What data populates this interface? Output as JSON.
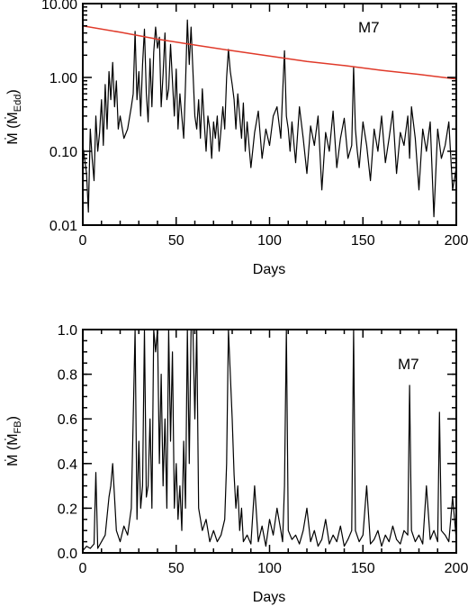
{
  "chart_data": [
    {
      "type": "line",
      "scale": "log",
      "annotation": "M7",
      "xlabel": "Days",
      "ylabel": "Ṁ  (Ṁ",
      "ylabel_sub": "Edd",
      "ylabel_close": ")",
      "xlim": [
        0,
        200
      ],
      "ylim": [
        0.01,
        10
      ],
      "xticks": [
        0,
        50,
        100,
        150,
        200
      ],
      "xtick_labels": [
        "0",
        "50",
        "100",
        "150",
        "200"
      ],
      "yticks": [
        0.01,
        0.1,
        1,
        10
      ],
      "ytick_labels": [
        "0.01",
        "0.10",
        "1.00",
        "10.00"
      ],
      "grid": false,
      "series": [
        {
          "color": "#000000",
          "x": [
            0,
            2,
            3,
            4,
            5,
            6,
            7,
            8,
            9,
            10,
            11,
            12,
            13,
            14,
            15,
            16,
            17,
            18,
            19,
            20,
            22,
            24,
            26,
            27,
            28,
            29,
            30,
            31,
            32,
            33,
            34,
            35,
            36,
            37,
            38,
            39,
            40,
            41,
            42,
            43,
            44,
            45,
            46,
            47,
            48,
            49,
            50,
            51,
            52,
            53,
            54,
            55,
            56,
            57,
            58,
            59,
            60,
            61,
            62,
            63,
            64,
            65,
            66,
            67,
            68,
            69,
            70,
            71,
            72,
            73,
            74,
            75,
            76,
            77,
            78,
            79,
            80,
            81,
            82,
            83,
            84,
            85,
            86,
            87,
            88,
            89,
            90,
            92,
            94,
            96,
            98,
            100,
            102,
            104,
            106,
            107,
            108,
            109,
            110,
            111,
            112,
            114,
            116,
            118,
            120,
            122,
            124,
            126,
            128,
            130,
            132,
            134,
            136,
            138,
            140,
            142,
            144,
            145,
            146,
            147,
            148,
            150,
            152,
            154,
            156,
            158,
            160,
            162,
            164,
            166,
            168,
            170,
            172,
            174,
            175,
            176,
            178,
            180,
            182,
            184,
            186,
            188,
            190,
            192,
            194,
            196,
            198,
            200
          ],
          "y": [
            0.12,
            0.05,
            0.015,
            0.2,
            0.08,
            0.04,
            0.3,
            0.1,
            0.18,
            0.5,
            0.12,
            0.8,
            0.2,
            1.2,
            0.5,
            1.6,
            0.4,
            0.9,
            0.2,
            0.3,
            0.15,
            0.2,
            0.4,
            0.6,
            4.2,
            0.5,
            1.2,
            0.3,
            1.5,
            4.5,
            0.6,
            0.25,
            1.8,
            0.4,
            2.2,
            4.8,
            2.5,
            3.5,
            0.4,
            1.1,
            4.0,
            0.5,
            0.7,
            2.8,
            0.9,
            0.3,
            1.3,
            0.2,
            0.6,
            0.3,
            0.15,
            0.8,
            6.0,
            1.5,
            4.8,
            1.2,
            0.3,
            0.2,
            0.5,
            0.15,
            0.7,
            0.25,
            0.1,
            0.3,
            0.2,
            0.08,
            0.25,
            0.15,
            0.3,
            0.1,
            0.2,
            0.4,
            0.2,
            1.0,
            2.4,
            1.2,
            0.8,
            0.5,
            0.2,
            0.6,
            0.3,
            0.15,
            0.45,
            0.1,
            0.25,
            0.12,
            0.06,
            0.18,
            0.35,
            0.08,
            0.2,
            0.12,
            0.3,
            0.4,
            0.15,
            0.6,
            2.3,
            0.3,
            0.2,
            0.1,
            0.25,
            0.07,
            0.4,
            0.15,
            0.05,
            0.22,
            0.12,
            0.3,
            0.03,
            0.18,
            0.1,
            0.35,
            0.06,
            0.15,
            0.28,
            0.08,
            0.12,
            1.4,
            0.2,
            0.1,
            0.06,
            0.25,
            0.12,
            0.04,
            0.2,
            0.1,
            0.3,
            0.07,
            0.15,
            0.35,
            0.05,
            0.18,
            0.12,
            0.3,
            0.08,
            0.4,
            0.15,
            0.03,
            0.2,
            0.1,
            0.25,
            0.013,
            0.2,
            0.08,
            0.12,
            0.25,
            0.03,
            0.06
          ]
        },
        {
          "color": "#e03a2a",
          "x": [
            0,
            20,
            40,
            60,
            80,
            100,
            120,
            140,
            160,
            180,
            200
          ],
          "y": [
            5.0,
            4.1,
            3.3,
            2.75,
            2.3,
            1.95,
            1.65,
            1.45,
            1.25,
            1.1,
            0.95
          ]
        }
      ]
    },
    {
      "type": "line",
      "scale": "linear",
      "annotation": "M7",
      "xlabel": "Days",
      "ylabel": "Ṁ  (Ṁ",
      "ylabel_sub": "FB",
      "ylabel_close": ")",
      "xlim": [
        0,
        200
      ],
      "ylim": [
        0,
        1
      ],
      "xticks": [
        0,
        50,
        100,
        150,
        200
      ],
      "xtick_labels": [
        "0",
        "50",
        "100",
        "150",
        "200"
      ],
      "yticks": [
        0,
        0.2,
        0.4,
        0.6,
        0.8,
        1.0
      ],
      "ytick_labels": [
        "0.0",
        "0.2",
        "0.4",
        "0.6",
        "0.8",
        "1.0"
      ],
      "grid": false,
      "series": [
        {
          "color": "#000000",
          "x": [
            0,
            2,
            4,
            6,
            7,
            8,
            10,
            12,
            14,
            15,
            16,
            18,
            20,
            22,
            24,
            26,
            27,
            28,
            29,
            30,
            31,
            32,
            33,
            34,
            35,
            36,
            37,
            38,
            39,
            40,
            41,
            42,
            43,
            44,
            45,
            46,
            47,
            48,
            49,
            50,
            51,
            52,
            53,
            54,
            55,
            56,
            57,
            58,
            59,
            60,
            61,
            62,
            64,
            66,
            68,
            70,
            72,
            74,
            76,
            77,
            78,
            79,
            80,
            81,
            82,
            83,
            84,
            85,
            86,
            88,
            90,
            92,
            94,
            96,
            98,
            100,
            102,
            104,
            106,
            107,
            108,
            109,
            110,
            112,
            114,
            116,
            118,
            120,
            122,
            124,
            126,
            128,
            130,
            132,
            134,
            136,
            138,
            140,
            142,
            144,
            145,
            146,
            148,
            150,
            152,
            154,
            156,
            158,
            160,
            162,
            164,
            166,
            168,
            170,
            172,
            174,
            175,
            176,
            178,
            180,
            182,
            184,
            186,
            188,
            190,
            191,
            192,
            194,
            196,
            198,
            200
          ],
          "y": [
            0.01,
            0.03,
            0.02,
            0.04,
            0.36,
            0.02,
            0.05,
            0.08,
            0.25,
            0.3,
            0.4,
            0.1,
            0.05,
            0.12,
            0.08,
            0.2,
            0.6,
            1.0,
            0.15,
            0.5,
            0.2,
            0.3,
            1.0,
            0.25,
            0.3,
            0.6,
            0.2,
            1.0,
            0.9,
            1.0,
            0.4,
            0.8,
            0.3,
            0.6,
            0.2,
            1.0,
            0.5,
            0.9,
            0.2,
            0.4,
            0.15,
            0.3,
            0.1,
            0.5,
            0.2,
            1.0,
            0.4,
            1.0,
            1.0,
            0.6,
            1.0,
            0.2,
            0.1,
            0.15,
            0.05,
            0.1,
            0.05,
            0.08,
            0.15,
            0.4,
            1.0,
            0.8,
            0.6,
            0.35,
            0.2,
            0.3,
            0.1,
            0.2,
            0.05,
            0.08,
            0.04,
            0.3,
            0.05,
            0.12,
            0.03,
            0.15,
            0.08,
            0.2,
            0.1,
            0.05,
            0.3,
            1.0,
            0.1,
            0.06,
            0.08,
            0.04,
            0.1,
            0.2,
            0.05,
            0.1,
            0.03,
            0.06,
            0.15,
            0.04,
            0.08,
            0.05,
            0.12,
            0.03,
            0.06,
            0.1,
            1.0,
            0.1,
            0.05,
            0.08,
            0.3,
            0.04,
            0.06,
            0.1,
            0.03,
            0.08,
            0.05,
            0.12,
            0.06,
            0.04,
            0.1,
            0.08,
            0.75,
            0.1,
            0.05,
            0.08,
            0.04,
            0.3,
            0.06,
            0.1,
            0.05,
            0.63,
            0.1,
            0.08,
            0.05,
            0.25,
            0.06
          ]
        }
      ]
    }
  ]
}
